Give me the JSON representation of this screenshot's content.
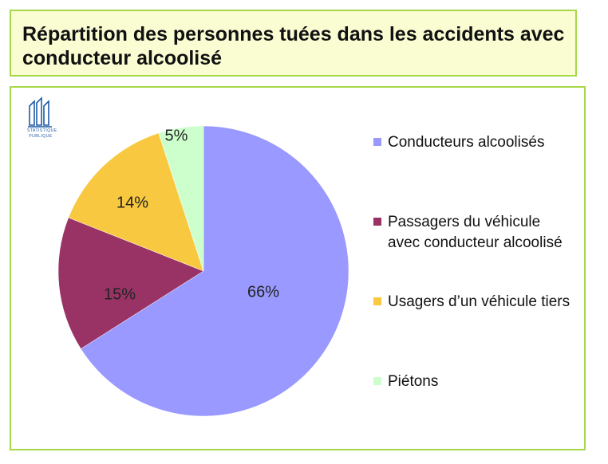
{
  "title": "Répartition des personnes tuées dans les accidents avec conducteur alcoolisé",
  "logo": {
    "caption_line1": "STATISTIQUE",
    "caption_line2": "PUBLIQUE"
  },
  "chart_data": {
    "type": "pie",
    "title": "Répartition des personnes tuées dans les accidents avec conducteur alcoolisé",
    "legend_position": "right",
    "slices": [
      {
        "label": "Conducteurs alcoolisés",
        "value": 66,
        "display": "66%",
        "color": "#9999ff"
      },
      {
        "label": "Passagers du véhicule avec conducteur alcoolisé",
        "value": 15,
        "display": "15%",
        "color": "#993366"
      },
      {
        "label": "Usagers d’un  véhicule tiers",
        "value": 14,
        "display": "14%",
        "color": "#f8c840"
      },
      {
        "label": "Piétons",
        "value": 5,
        "display": "5%",
        "color": "#ccffcc"
      }
    ]
  }
}
